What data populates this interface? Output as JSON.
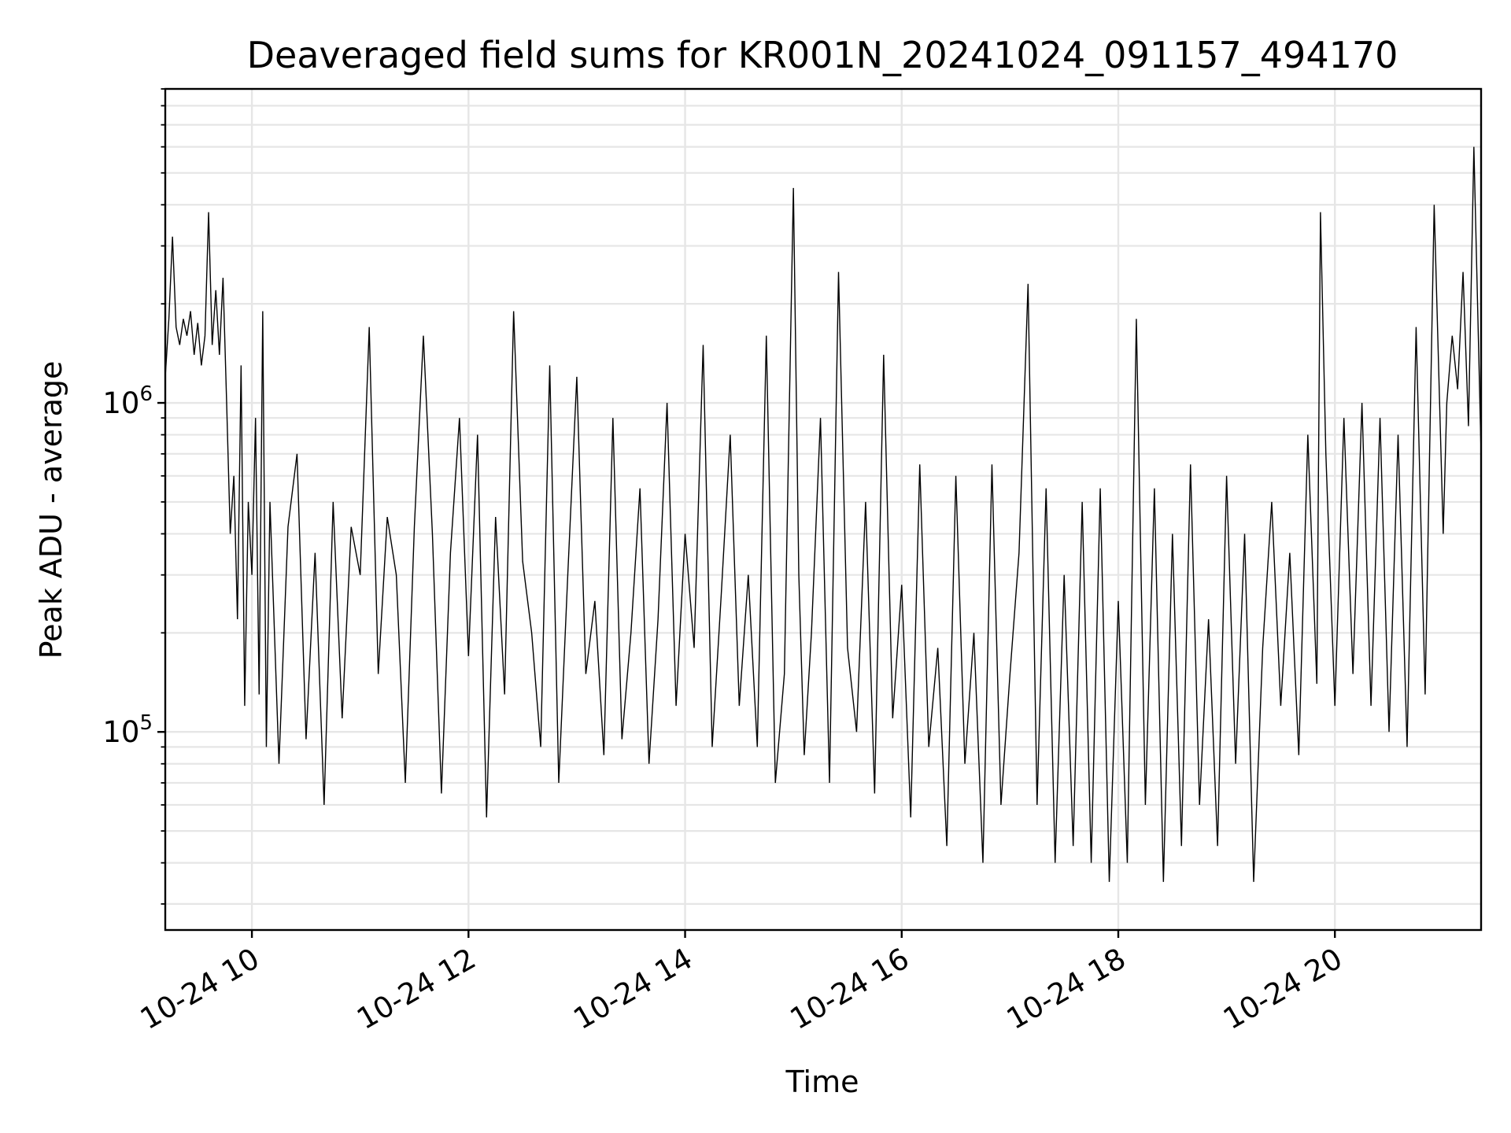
{
  "chart_data": {
    "type": "line",
    "title": "Deaveraged field sums for KR001N_20241024_091157_494170",
    "xlabel": "Time",
    "ylabel": "Peak ADU - average",
    "x_scale": "time",
    "y_scale": "log",
    "xlim": [
      "2024-10-24T09:12",
      "2024-10-24T21:21"
    ],
    "ylim": [
      25000,
      9000000
    ],
    "x_ticks": [
      {
        "value": "2024-10-24T10:00",
        "label": "10-24 10"
      },
      {
        "value": "2024-10-24T12:00",
        "label": "10-24 12"
      },
      {
        "value": "2024-10-24T14:00",
        "label": "10-24 14"
      },
      {
        "value": "2024-10-24T16:00",
        "label": "10-24 16"
      },
      {
        "value": "2024-10-24T18:00",
        "label": "10-24 18"
      },
      {
        "value": "2024-10-24T20:00",
        "label": "10-24 20"
      }
    ],
    "y_ticks": [
      {
        "value": 100000,
        "base": "10",
        "exponent": "5"
      },
      {
        "value": 1000000,
        "base": "10",
        "exponent": "6"
      }
    ],
    "grid": true,
    "legend": "none",
    "line_color": "#000000",
    "grid_color": "#e6e6e6",
    "series": [
      {
        "x": [
          "2024-10-24T09:12",
          "2024-10-24T09:14",
          "2024-10-24T09:16",
          "2024-10-24T09:18",
          "2024-10-24T09:20",
          "2024-10-24T09:22",
          "2024-10-24T09:24",
          "2024-10-24T09:26",
          "2024-10-24T09:28",
          "2024-10-24T09:30",
          "2024-10-24T09:32",
          "2024-10-24T09:34",
          "2024-10-24T09:36",
          "2024-10-24T09:38",
          "2024-10-24T09:40",
          "2024-10-24T09:42",
          "2024-10-24T09:44",
          "2024-10-24T09:46",
          "2024-10-24T09:48",
          "2024-10-24T09:50",
          "2024-10-24T09:52",
          "2024-10-24T09:54",
          "2024-10-24T09:56",
          "2024-10-24T09:58",
          "2024-10-24T10:00",
          "2024-10-24T10:02",
          "2024-10-24T10:04",
          "2024-10-24T10:06",
          "2024-10-24T10:08",
          "2024-10-24T10:10",
          "2024-10-24T10:15",
          "2024-10-24T10:20",
          "2024-10-24T10:25",
          "2024-10-24T10:30",
          "2024-10-24T10:35",
          "2024-10-24T10:40",
          "2024-10-24T10:45",
          "2024-10-24T10:50",
          "2024-10-24T10:55",
          "2024-10-24T11:00",
          "2024-10-24T11:05",
          "2024-10-24T11:10",
          "2024-10-24T11:15",
          "2024-10-24T11:20",
          "2024-10-24T11:25",
          "2024-10-24T11:30",
          "2024-10-24T11:35",
          "2024-10-24T11:40",
          "2024-10-24T11:45",
          "2024-10-24T11:50",
          "2024-10-24T11:55",
          "2024-10-24T12:00",
          "2024-10-24T12:05",
          "2024-10-24T12:10",
          "2024-10-24T12:15",
          "2024-10-24T12:20",
          "2024-10-24T12:25",
          "2024-10-24T12:30",
          "2024-10-24T12:35",
          "2024-10-24T12:40",
          "2024-10-24T12:45",
          "2024-10-24T12:50",
          "2024-10-24T12:55",
          "2024-10-24T13:00",
          "2024-10-24T13:05",
          "2024-10-24T13:10",
          "2024-10-24T13:15",
          "2024-10-24T13:20",
          "2024-10-24T13:25",
          "2024-10-24T13:30",
          "2024-10-24T13:35",
          "2024-10-24T13:40",
          "2024-10-24T13:45",
          "2024-10-24T13:50",
          "2024-10-24T13:55",
          "2024-10-24T14:00",
          "2024-10-24T14:05",
          "2024-10-24T14:10",
          "2024-10-24T14:15",
          "2024-10-24T14:20",
          "2024-10-24T14:25",
          "2024-10-24T14:30",
          "2024-10-24T14:35",
          "2024-10-24T14:40",
          "2024-10-24T14:45",
          "2024-10-24T14:50",
          "2024-10-24T14:55",
          "2024-10-24T15:00",
          "2024-10-24T15:03",
          "2024-10-24T15:06",
          "2024-10-24T15:10",
          "2024-10-24T15:15",
          "2024-10-24T15:20",
          "2024-10-24T15:25",
          "2024-10-24T15:30",
          "2024-10-24T15:35",
          "2024-10-24T15:40",
          "2024-10-24T15:45",
          "2024-10-24T15:50",
          "2024-10-24T15:55",
          "2024-10-24T16:00",
          "2024-10-24T16:05",
          "2024-10-24T16:10",
          "2024-10-24T16:15",
          "2024-10-24T16:20",
          "2024-10-24T16:25",
          "2024-10-24T16:30",
          "2024-10-24T16:35",
          "2024-10-24T16:40",
          "2024-10-24T16:45",
          "2024-10-24T16:50",
          "2024-10-24T16:55",
          "2024-10-24T17:00",
          "2024-10-24T17:05",
          "2024-10-24T17:10",
          "2024-10-24T17:15",
          "2024-10-24T17:20",
          "2024-10-24T17:25",
          "2024-10-24T17:30",
          "2024-10-24T17:35",
          "2024-10-24T17:40",
          "2024-10-24T17:45",
          "2024-10-24T17:50",
          "2024-10-24T17:55",
          "2024-10-24T18:00",
          "2024-10-24T18:05",
          "2024-10-24T18:10",
          "2024-10-24T18:15",
          "2024-10-24T18:20",
          "2024-10-24T18:25",
          "2024-10-24T18:30",
          "2024-10-24T18:35",
          "2024-10-24T18:40",
          "2024-10-24T18:45",
          "2024-10-24T18:50",
          "2024-10-24T18:55",
          "2024-10-24T19:00",
          "2024-10-24T19:05",
          "2024-10-24T19:10",
          "2024-10-24T19:15",
          "2024-10-24T19:20",
          "2024-10-24T19:25",
          "2024-10-24T19:30",
          "2024-10-24T19:35",
          "2024-10-24T19:40",
          "2024-10-24T19:45",
          "2024-10-24T19:50",
          "2024-10-24T19:52",
          "2024-10-24T19:55",
          "2024-10-24T20:00",
          "2024-10-24T20:05",
          "2024-10-24T20:10",
          "2024-10-24T20:15",
          "2024-10-24T20:20",
          "2024-10-24T20:25",
          "2024-10-24T20:30",
          "2024-10-24T20:35",
          "2024-10-24T20:40",
          "2024-10-24T20:45",
          "2024-10-24T20:50",
          "2024-10-24T20:55",
          "2024-10-24T21:00",
          "2024-10-24T21:02",
          "2024-10-24T21:05",
          "2024-10-24T21:08",
          "2024-10-24T21:11",
          "2024-10-24T21:14",
          "2024-10-24T21:17",
          "2024-10-24T21:21"
        ],
        "y": [
          1200000,
          1800000,
          3200000,
          1700000,
          1500000,
          1800000,
          1600000,
          1900000,
          1400000,
          1750000,
          1300000,
          1600000,
          3800000,
          1500000,
          2200000,
          1400000,
          2400000,
          1000000,
          400000,
          600000,
          220000,
          1300000,
          120000,
          500000,
          300000,
          900000,
          130000,
          1900000,
          90000,
          500000,
          80000,
          420000,
          700000,
          95000,
          350000,
          60000,
          500000,
          110000,
          420000,
          300000,
          1700000,
          150000,
          450000,
          300000,
          70000,
          420000,
          1600000,
          400000,
          65000,
          350000,
          900000,
          170000,
          800000,
          55000,
          450000,
          130000,
          1900000,
          330000,
          200000,
          90000,
          1300000,
          70000,
          300000,
          1200000,
          150000,
          250000,
          85000,
          900000,
          95000,
          200000,
          550000,
          80000,
          220000,
          1000000,
          120000,
          400000,
          180000,
          1500000,
          90000,
          260000,
          800000,
          120000,
          300000,
          90000,
          1600000,
          70000,
          150000,
          4500000,
          300000,
          85000,
          200000,
          900000,
          70000,
          2500000,
          180000,
          100000,
          500000,
          65000,
          1400000,
          110000,
          280000,
          55000,
          650000,
          90000,
          180000,
          45000,
          600000,
          80000,
          200000,
          40000,
          650000,
          60000,
          150000,
          350000,
          2300000,
          60000,
          550000,
          40000,
          300000,
          45000,
          500000,
          40000,
          550000,
          35000,
          250000,
          40000,
          1800000,
          60000,
          550000,
          35000,
          400000,
          45000,
          650000,
          60000,
          220000,
          45000,
          600000,
          80000,
          400000,
          35000,
          180000,
          500000,
          120000,
          350000,
          85000,
          800000,
          140000,
          3800000,
          700000,
          120000,
          900000,
          150000,
          1000000,
          120000,
          900000,
          100000,
          800000,
          90000,
          1700000,
          130000,
          4000000,
          400000,
          1000000,
          1600000,
          1100000,
          2500000,
          850000,
          6000000,
          700000
        ]
      }
    ]
  }
}
